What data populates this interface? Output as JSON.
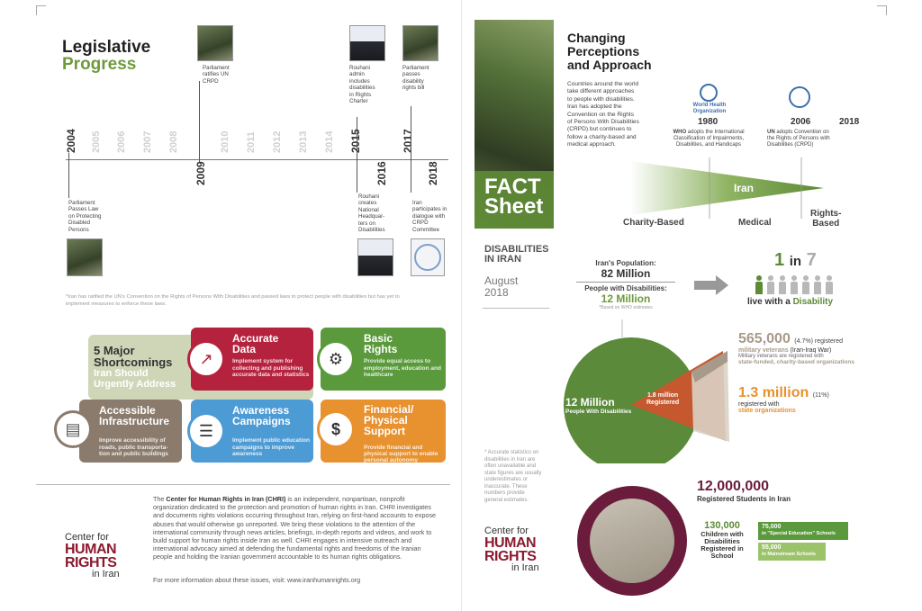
{
  "left": {
    "title_line1": "Legislative",
    "title_line2": "Progress",
    "years": [
      "2004",
      "2005",
      "2006",
      "2007",
      "2008",
      "2009",
      "2010",
      "2011",
      "2012",
      "2013",
      "2014",
      "2015",
      "2016",
      "2017",
      "2018"
    ],
    "events": {
      "e2004": "Parliament Passes Law on Protecting Disabled Persons",
      "e2009": "Parliament ratifies UN CRPD",
      "e2015_top": "Rouhani admin includes disabilities in Rights Charter",
      "e2015_bottom": "Rouhani creates National Headquar-ters on Disabilities",
      "e2017_top": "Parliament passes disability rights bill",
      "e2017_bottom": "Iran participates in dialogue with CRPD Committee"
    },
    "footnote": "*Iran has ratified the UN's Convention on the Rights of Persons With Disabilities and passed laws to protect people with disabilities but has yet to implement measures to enforce these laws.",
    "shortcomings": {
      "heading1": "5 Major",
      "heading2": "Shortcomings",
      "heading3": "Iran Should",
      "heading4": "Urgently Address",
      "cards": [
        {
          "title": "Accurate Data",
          "body": "Implement system for collecting and publishing accurate data and statistics",
          "color": "#b5223d"
        },
        {
          "title": "Basic Rights",
          "body": "Provide equal access to employment, education and healthcare",
          "color": "#5a9a3c"
        },
        {
          "title": "Accessible Infrastructure",
          "body": "Improve accessibility of roads, public transporta-tion and public buildings",
          "color": "#8a7b6d"
        },
        {
          "title": "Awareness Campaigns",
          "body": "Implement public education campaigns to improve awareness",
          "color": "#4d9bd4"
        },
        {
          "title": "Financial/ Physical Support",
          "body": "Provide financial and physical support to enable personal autonomy",
          "color": "#e8912f"
        }
      ]
    },
    "chri_paragraph_pre": "The ",
    "chri_paragraph_bold": "Center for Human Rights in Iran (CHRI)",
    "chri_paragraph_rest": " is an independent, nonpartisan, nonprofit organization dedicated to the protection and promotion of human rights in Iran. CHRI investigates and documents rights violations occurring throughout Iran, relying on first-hand accounts to expose abuses that would otherwise go unreported. We bring these violations to the attention of the international community through news articles, briefings, in-depth reports and videos, and work to build support for human rights inside Iran as well. CHRI engages in intensive outreach and international advocacy aimed at defending the fundamental rights and freedoms of the Iranian people and holding the Iranian government accountable to its human rights obligations.",
    "chri_more": "For more information about these issues, visit: www.iranhumanrights.org"
  },
  "logo": {
    "line1": "Center for",
    "line2": "HUMAN",
    "line3": "RIGHTS",
    "line4": "in Iran"
  },
  "right": {
    "fact": "FACT",
    "sheet": "Sheet",
    "subject_line1": "DISABILITIES",
    "subject_line2": "IN IRAN",
    "date_line1": "August",
    "date_line2": "2018",
    "side_note": "* Accurate statistics on disabilities in Iran are often unavailable and state figures are usually underestimates or inaccurate. These numbers provide general estimates.",
    "perceptions_line1": "Changing",
    "perceptions_line2": "Perceptions",
    "perceptions_line3": "and Approach",
    "perceptions_body": "Countries around the world take different approaches to people with disabilities. Iran has adopted the Convention on the Rights of Persons With Disabilities (CRPD) but continues to follow a charity-based and medical approach.",
    "who_label_1": "World Health",
    "who_label_2": "Organization",
    "year_1980": "1980",
    "year_2006": "2006",
    "year_2018": "2018",
    "who_bold": "WHO",
    "who_text": " adopts the International Classification of Impairments, Disabilities, and Handicaps",
    "un_bold": "UN",
    "un_text": " adopts Convention on the Rights of Persons with Disabilities (CRPD)",
    "iran_label": "Iran",
    "charity": "Charity-Based",
    "medical": "Medical",
    "rights_1": "Rights-",
    "rights_2": "Based",
    "population_label": "Iran's Population:",
    "population_value": "82 Million",
    "pwd_label": "People with Disabilities:",
    "pwd_value": "12 Million",
    "pwd_note": "*Based on WHO estimates",
    "one": "1",
    "in": "in",
    "seven": "7",
    "live_with": "live with a ",
    "disability": "Disability",
    "pie_main_value": "12 Million",
    "pie_main_label": "People With Disabilities",
    "pie_slice_value": "1.8 million",
    "pie_slice_label": "Registered",
    "vets_value": "565,000",
    "vets_pct": "(4.7%) registered",
    "vets_label": "military veterans",
    "vets_war": " (Iran-Iraq War)",
    "vets_note": "Military veterans are registered with",
    "vets_orgs": "state-funded, charity-based organizations",
    "state_value": "1.3 million",
    "state_pct": "(11%)",
    "state_reg": "registered with",
    "state_orgs": "state organizations",
    "students_value": "12,000,000",
    "students_label": "Registered Students in Iran",
    "children_value": "130,000",
    "children_label": "Children with Disabilities Registered in School",
    "special_value": "75,000",
    "special_label": "in \"Special Education\" Schools",
    "mainstream_value": "55,000",
    "mainstream_label": "in Mainstream Schools"
  }
}
